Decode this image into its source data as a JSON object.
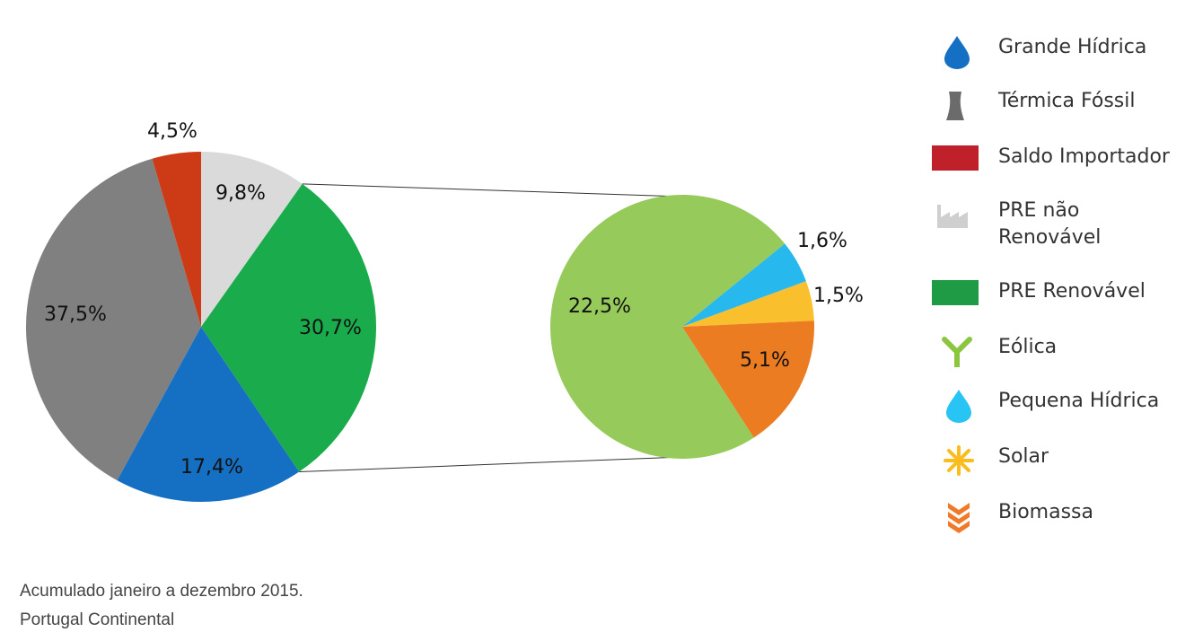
{
  "chart_data": [
    {
      "type": "pie",
      "slices": [
        {
          "label": "Térmica Fóssil",
          "value": 37.5,
          "display": "37,5%",
          "color": "#808080"
        },
        {
          "label": "Saldo Importador",
          "value": 4.5,
          "display": "4,5%",
          "color": "#cc3a16"
        },
        {
          "label": "PRE não Renovável",
          "value": 9.8,
          "display": "9,8%",
          "color": "#dadada"
        },
        {
          "label": "PRE Renovável",
          "value": 30.7,
          "display": "30,7%",
          "color": "#1aab4c"
        },
        {
          "label": "Grande Hídrica",
          "value": 17.4,
          "display": "17,4%",
          "color": "#1570c4"
        }
      ]
    },
    {
      "type": "pie",
      "slices": [
        {
          "label": "Eólica",
          "value": 22.5,
          "display": "22,5%",
          "color": "#96ca5a"
        },
        {
          "label": "Pequena Hídrica",
          "value": 1.6,
          "display": "1,6%",
          "color": "#27b8ee"
        },
        {
          "label": "Solar",
          "value": 1.5,
          "display": "1,5%",
          "color": "#f9bf2d"
        },
        {
          "label": "Biomassa",
          "value": 5.1,
          "display": "5,1%",
          "color": "#ec7c22"
        }
      ]
    }
  ],
  "legend": [
    {
      "label": "Grande Hídrica",
      "icon": "water-drop-icon",
      "color": "#1570c4"
    },
    {
      "label": "Térmica Fóssil",
      "icon": "cooling-tower-icon",
      "color": "#6b6b6b"
    },
    {
      "label": "Saldo Importador",
      "icon": "red-square-icon",
      "color": "#c0202a"
    },
    {
      "label": "PRE não\nRenovável",
      "icon": "factory-icon",
      "color": "#cfcfcf"
    },
    {
      "label": "PRE Renovável",
      "icon": "green-square-icon",
      "color": "#1f9a45"
    },
    {
      "label": "Eólica",
      "icon": "wind-turbine-icon",
      "color": "#8cc63f"
    },
    {
      "label": "Pequena Hídrica",
      "icon": "small-water-drop-icon",
      "color": "#27c4f4"
    },
    {
      "label": "Solar",
      "icon": "sun-icon",
      "color": "#fbbd1e"
    },
    {
      "label": "Biomassa",
      "icon": "biomass-icon",
      "color": "#f07a2a"
    }
  ],
  "footnote": {
    "line1": "Acumulado janeiro a dezembro 2015.",
    "line2": "Portugal Continental"
  }
}
